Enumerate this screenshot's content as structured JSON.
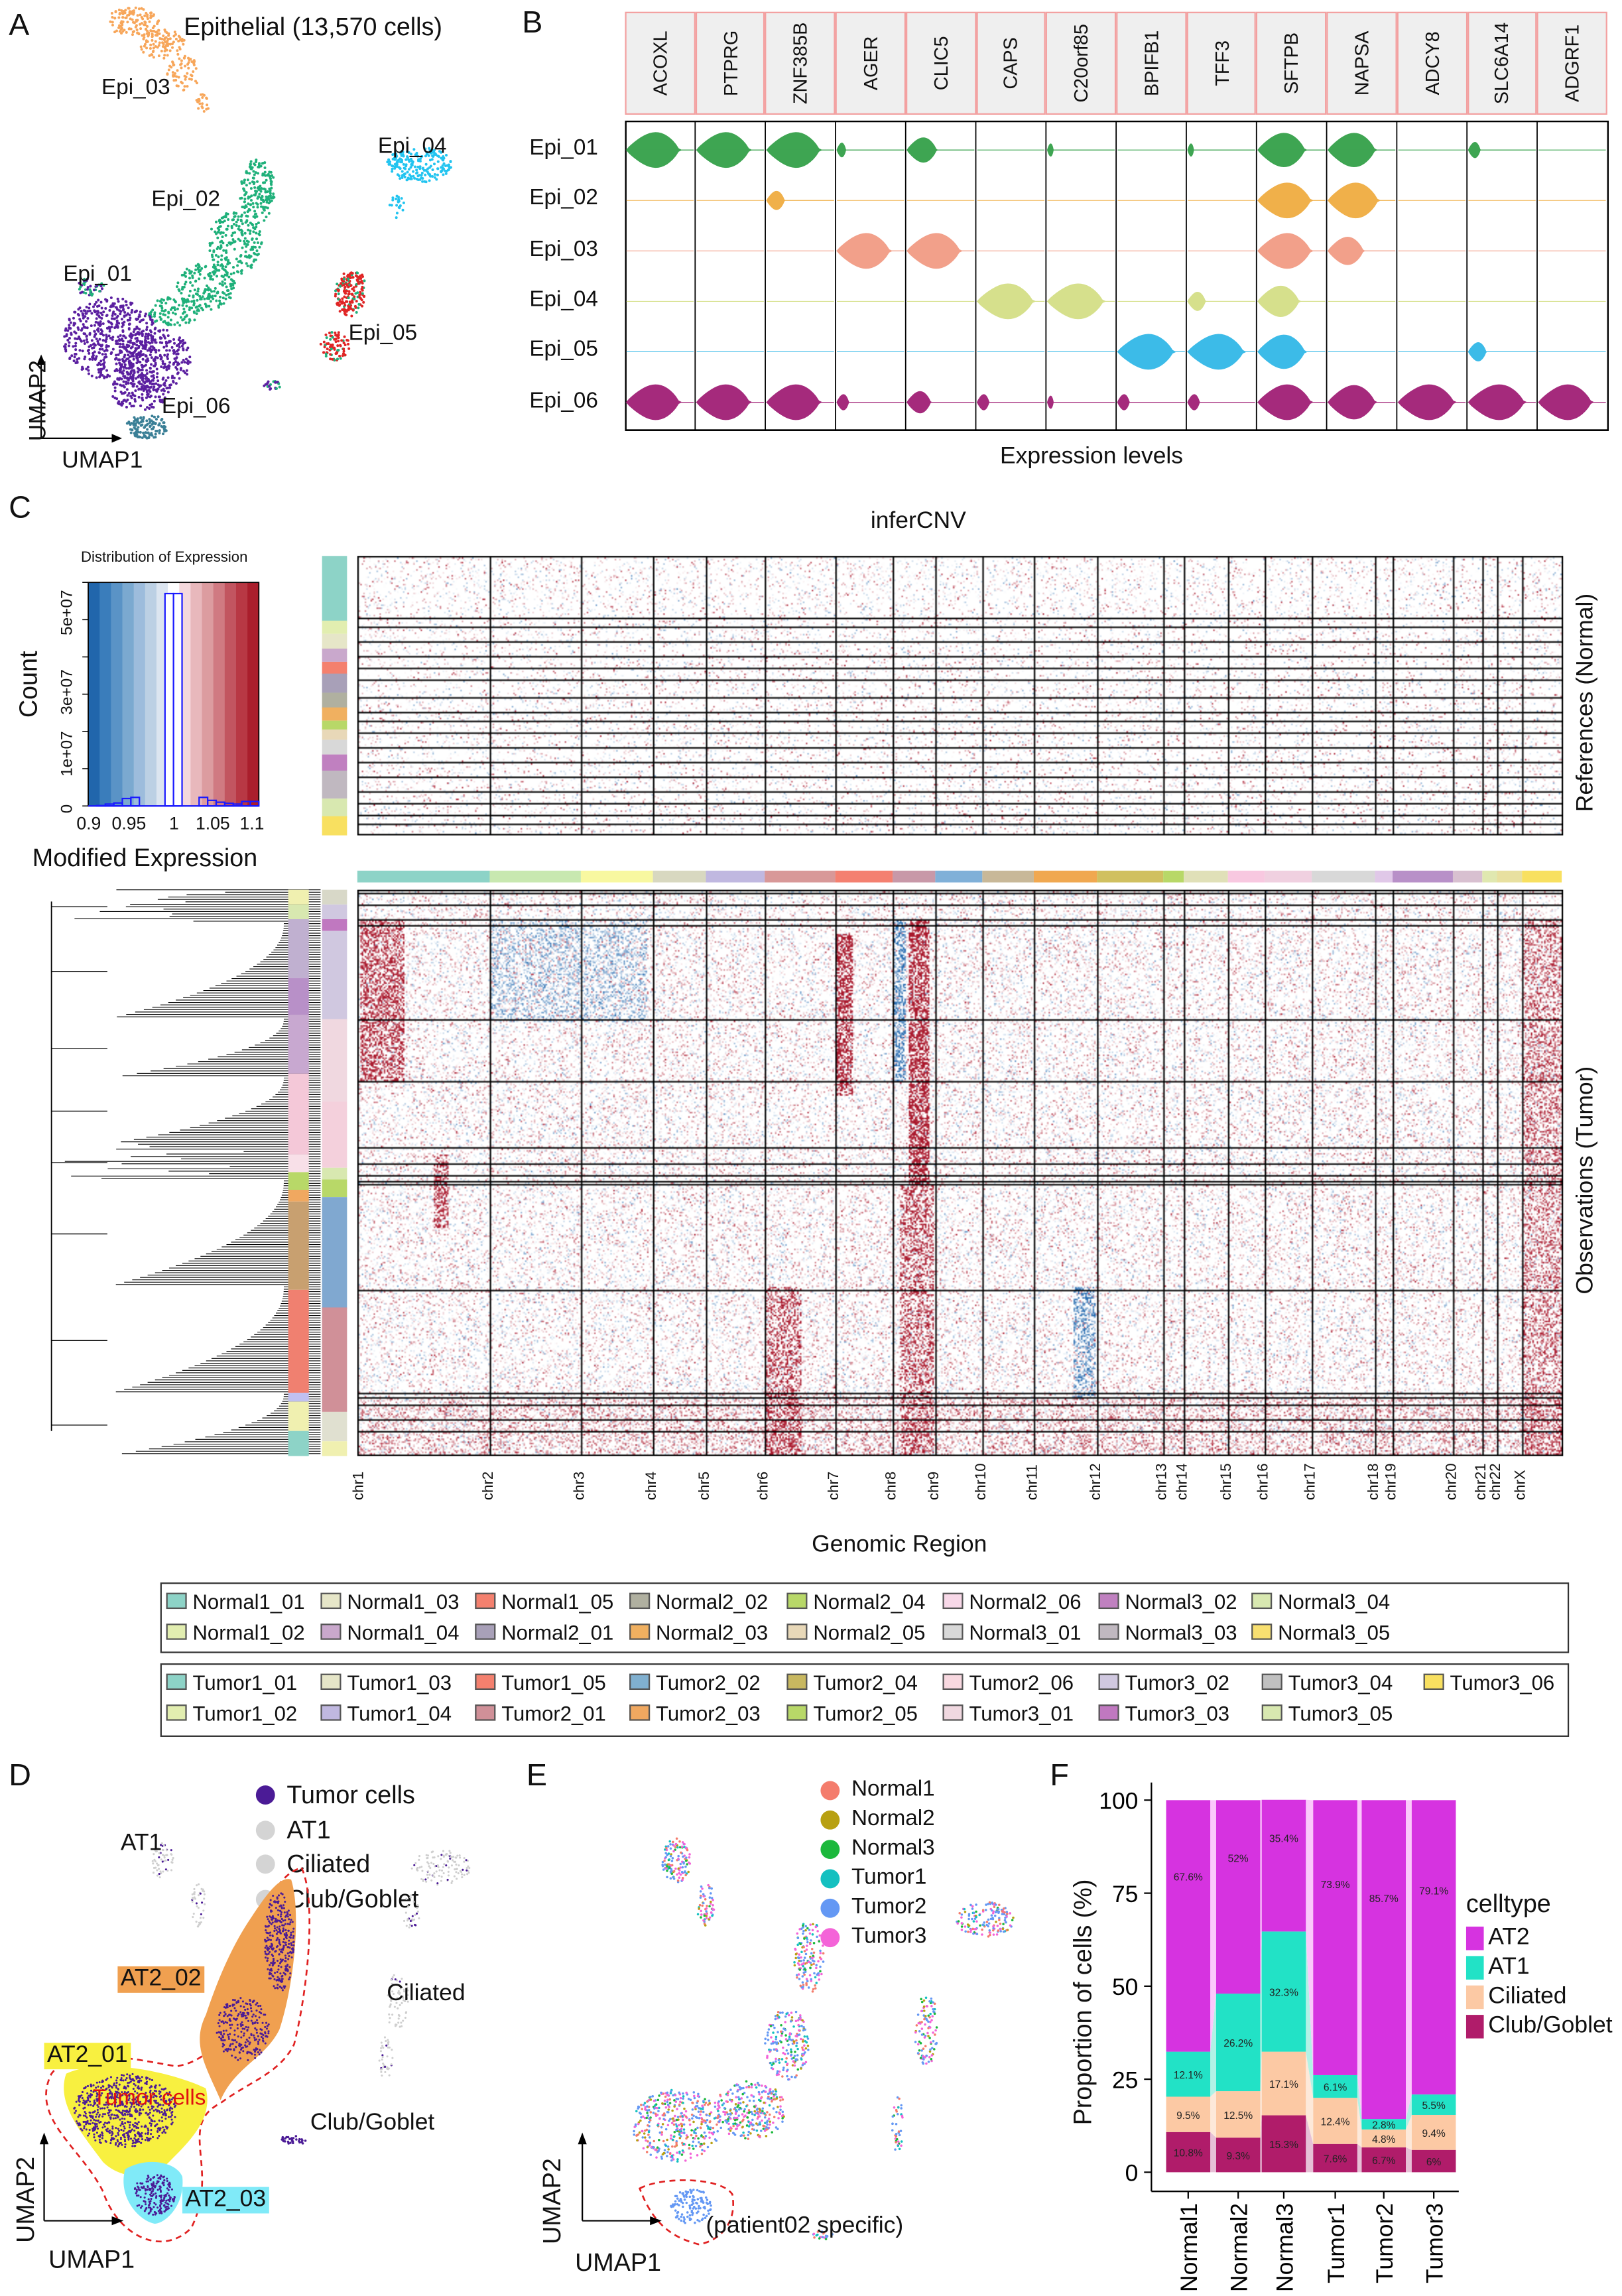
{
  "panels": {
    "a": "A",
    "b": "B",
    "c": "C",
    "d": "D",
    "e": "E",
    "f": "F"
  },
  "panel_a": {
    "title": "Epithelial (13,570 cells)",
    "clusters": [
      {
        "label": "Epi_01",
        "color": "#5b1fa0"
      },
      {
        "label": "Epi_02",
        "color": "#1fb07a"
      },
      {
        "label": "Epi_03",
        "color": "#f7a65a"
      },
      {
        "label": "Epi_04",
        "color": "#22c4f0"
      },
      {
        "label": "Epi_05",
        "color": "#e02525"
      },
      {
        "label": "Epi_06",
        "color": "#3a7f96"
      }
    ],
    "xaxis": "UMAP1",
    "yaxis": "UMAP2"
  },
  "panel_b": {
    "genes": [
      "ACOXL",
      "PTPRG",
      "ZNF385B",
      "AGER",
      "CLIC5",
      "CAPS",
      "C20orf85",
      "BPIFB1",
      "TFF3",
      "SFTPB",
      "NAPSA",
      "ADCY8",
      "SLC6A14",
      "ADGRF1"
    ],
    "rows": [
      "Epi_01",
      "Epi_02",
      "Epi_03",
      "Epi_04",
      "Epi_05",
      "Epi_06"
    ],
    "row_colors": [
      "#3ea552",
      "#f0b04a",
      "#f2a08a",
      "#d6e08c",
      "#3cbbe8",
      "#a52a7c"
    ],
    "xlabel": "Expression levels"
  },
  "panel_c": {
    "title": "inferCNV",
    "hist_title": "Distribution of Expression",
    "hist_ylabel": "Count",
    "hist_xlabel": "Modified Expression",
    "hist_yticks": [
      "0",
      "1e+07",
      "3e+07",
      "5e+07"
    ],
    "hist_xticks": [
      "0.9",
      "0.95",
      "1",
      "1.05",
      "1.1"
    ],
    "ref_label": "References (Normal)",
    "obs_label": "Observations (Tumor)",
    "xlabel": "Genomic Region",
    "chromosomes": [
      "chr1",
      "chr2",
      "chr3",
      "chr4",
      "chr5",
      "chr6",
      "chr7",
      "chr8",
      "chr9",
      "chr10",
      "chr11",
      "chr12",
      "chr13",
      "chr14",
      "chr15",
      "chr16",
      "chr17",
      "chr18",
      "chr19",
      "chr20",
      "chr21",
      "chr22",
      "chrX"
    ],
    "normal_legend": [
      {
        "label": "Normal1_01",
        "color": "#8dd3c7"
      },
      {
        "label": "Normal1_03",
        "color": "#e6e6c8"
      },
      {
        "label": "Normal1_05",
        "color": "#f4806e"
      },
      {
        "label": "Normal2_02",
        "color": "#b0b0a0"
      },
      {
        "label": "Normal2_04",
        "color": "#b8d868"
      },
      {
        "label": "Normal2_06",
        "color": "#f8d8e8"
      },
      {
        "label": "Normal3_02",
        "color": "#c080c0"
      },
      {
        "label": "Normal3_04",
        "color": "#d8e8b0"
      },
      {
        "label": "Normal1_02",
        "color": "#e2eeb0"
      },
      {
        "label": "Normal1_04",
        "color": "#c9a8cc"
      },
      {
        "label": "Normal2_01",
        "color": "#a8a0b8"
      },
      {
        "label": "Normal2_03",
        "color": "#f0b060"
      },
      {
        "label": "Normal2_05",
        "color": "#e8d8b8"
      },
      {
        "label": "Normal3_01",
        "color": "#d8d8d8"
      },
      {
        "label": "Normal3_03",
        "color": "#c0b8c0"
      },
      {
        "label": "Normal3_05",
        "color": "#f8e070"
      }
    ],
    "tumor_legend": [
      {
        "label": "Tumor1_01",
        "color": "#8dd3c7"
      },
      {
        "label": "Tumor1_03",
        "color": "#e6e6c8"
      },
      {
        "label": "Tumor1_05",
        "color": "#f4806e"
      },
      {
        "label": "Tumor2_02",
        "color": "#80b0d0"
      },
      {
        "label": "Tumor2_04",
        "color": "#c8b860"
      },
      {
        "label": "Tumor2_06",
        "color": "#f8d8e0"
      },
      {
        "label": "Tumor3_02",
        "color": "#d0c8e0"
      },
      {
        "label": "Tumor3_04",
        "color": "#c0c0c0"
      },
      {
        "label": "Tumor3_06",
        "color": "#f8e060"
      },
      {
        "label": "Tumor1_02",
        "color": "#e2eeb0"
      },
      {
        "label": "Tumor1_04",
        "color": "#c0b8e0"
      },
      {
        "label": "Tumor2_01",
        "color": "#d09098"
      },
      {
        "label": "Tumor2_03",
        "color": "#f0a860"
      },
      {
        "label": "Tumor2_05",
        "color": "#b8d868"
      },
      {
        "label": "Tumor3_01",
        "color": "#f0d8e0"
      },
      {
        "label": "Tumor3_03",
        "color": "#c078c0"
      },
      {
        "label": "Tumor3_05",
        "color": "#d8e8b0"
      }
    ]
  },
  "panel_d": {
    "legend": [
      {
        "label": "Tumor cells",
        "color": "#4b1b96"
      },
      {
        "label": "AT1",
        "color": "#d4d4d4"
      },
      {
        "label": "Ciliated",
        "color": "#d4d4d4"
      },
      {
        "label": "Club/Goblet",
        "color": "#d4d4d4"
      }
    ],
    "labels": {
      "at1": "AT1",
      "at2_02": "AT2_02",
      "at2_01": "AT2_01",
      "at2_03": "AT2_03",
      "tumor": "Tumor cells",
      "ciliated": "Ciliated",
      "club": "Club/Goblet"
    },
    "xaxis": "UMAP1",
    "yaxis": "UMAP2"
  },
  "panel_e": {
    "legend": [
      {
        "label": "Normal1",
        "color": "#f47c6c"
      },
      {
        "label": "Normal2",
        "color": "#b8a012"
      },
      {
        "label": "Normal3",
        "color": "#1cb83c"
      },
      {
        "label": "Tumor1",
        "color": "#14c0c0"
      },
      {
        "label": "Tumor2",
        "color": "#6498f4"
      },
      {
        "label": "Tumor3",
        "color": "#f464d8"
      }
    ],
    "annotation": "(patient02 specific)",
    "xaxis": "UMAP1",
    "yaxis": "UMAP2"
  },
  "chart_data": [
    {
      "type": "bar",
      "stacked": true,
      "title": "",
      "xlabel": "",
      "ylabel": "Proportion of cells (%)",
      "ylim": [
        0,
        100
      ],
      "yticks": [
        "0",
        "25",
        "50",
        "75",
        "100"
      ],
      "categories": [
        "Normal1",
        "Normal2",
        "Normal3",
        "Tumor1",
        "Tumor2",
        "Tumor3"
      ],
      "legend_title": "celltype",
      "legend_position": "right",
      "series": [
        {
          "name": "Club/Goblet",
          "color": "#b01c6a",
          "values": [
            10.8,
            9.3,
            15.3,
            7.6,
            6.7,
            6
          ],
          "labels": [
            "10.8%",
            "9.3%",
            "15.3%",
            "7.6%",
            "6.7%",
            "6%"
          ]
        },
        {
          "name": "Ciliated",
          "color": "#fcc9a4",
          "values": [
            9.5,
            12.5,
            17.1,
            12.4,
            4.8,
            9.4
          ],
          "labels": [
            "9.5%",
            "12.5%",
            "17.1%",
            "12.4%",
            "4.8%",
            "9.4%"
          ]
        },
        {
          "name": "AT1",
          "color": "#22e2c6",
          "values": [
            12.1,
            26.2,
            32.3,
            6.1,
            2.8,
            5.5
          ],
          "labels": [
            "12.1%",
            "26.2%",
            "32.3%",
            "6.1%",
            "2.8%",
            "5.5%"
          ]
        },
        {
          "name": "AT2",
          "color": "#d633e0",
          "values": [
            67.6,
            52,
            35.4,
            73.9,
            85.7,
            79.1
          ],
          "labels": [
            "67.6%",
            "52%",
            "35.4%",
            "73.9%",
            "85.7%",
            "79.1%"
          ]
        }
      ],
      "legend_order": [
        "AT2",
        "AT1",
        "Ciliated",
        "Club/Goblet"
      ]
    },
    {
      "type": "violin",
      "note": "relative expression level per cluster (0-1)",
      "rows": [
        "Epi_01",
        "Epi_02",
        "Epi_03",
        "Epi_04",
        "Epi_05",
        "Epi_06"
      ],
      "columns": [
        "ACOXL",
        "PTPRG",
        "ZNF385B",
        "AGER",
        "CLIC5",
        "CAPS",
        "C20orf85",
        "BPIFB1",
        "TFF3",
        "SFTPB",
        "NAPSA",
        "ADCY8",
        "SLC6A14",
        "ADGRF1"
      ],
      "levels": [
        [
          0.9,
          0.9,
          0.9,
          0.15,
          0.5,
          0,
          0.1,
          0,
          0.1,
          0.8,
          0.8,
          0,
          0.2,
          0
        ],
        [
          0,
          0,
          0.3,
          0,
          0,
          0,
          0,
          0,
          0,
          0.9,
          0.85,
          0,
          0,
          0
        ],
        [
          0,
          0,
          0,
          0.9,
          0.9,
          0,
          0,
          0,
          0,
          0.9,
          0.6,
          0,
          0,
          0
        ],
        [
          0,
          0,
          0,
          0,
          0,
          0.95,
          0.95,
          0,
          0.3,
          0.7,
          0,
          0,
          0,
          0
        ],
        [
          0,
          0,
          0,
          0,
          0,
          0,
          0,
          0.95,
          0.95,
          0.8,
          0,
          0,
          0.3,
          0
        ],
        [
          0.9,
          0.9,
          0.9,
          0.2,
          0.4,
          0.2,
          0.1,
          0.2,
          0.2,
          0.9,
          0.8,
          0.95,
          0.95,
          0.9
        ]
      ]
    },
    {
      "type": "histogram",
      "xlim": [
        0.9,
        1.1
      ],
      "ylim": [
        0,
        60000000
      ],
      "bins": [
        0.905,
        0.915,
        0.925,
        0.935,
        0.945,
        0.955,
        0.965,
        0.975,
        0.985,
        0.995,
        1.005,
        1.015,
        1.025,
        1.035,
        1.045,
        1.055,
        1.065,
        1.075,
        1.085,
        1.095
      ],
      "counts": [
        0,
        100000,
        500000,
        800000,
        2000000,
        2300000,
        0,
        0,
        0,
        57000000,
        57000000,
        0,
        0,
        2300000,
        1500000,
        1000000,
        700000,
        500000,
        1200000,
        1200000
      ]
    }
  ]
}
